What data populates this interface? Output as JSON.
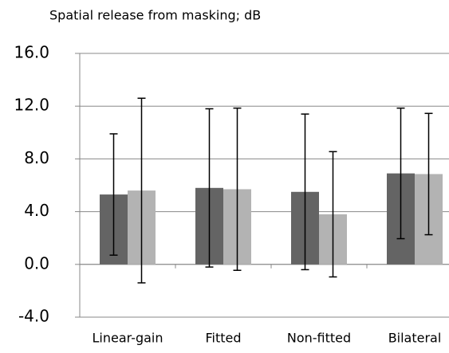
{
  "chart_data": {
    "type": "bar",
    "title": "Spatial release from masking; dB",
    "categories": [
      "Linear-gain",
      "Fitted",
      "Non-fitted",
      "Bilateral"
    ],
    "series": [
      {
        "color": "#646464",
        "values": [
          5.3,
          5.8,
          5.5,
          6.9
        ],
        "errors": [
          4.6,
          6.0,
          5.9,
          4.95
        ]
      },
      {
        "color": "#b3b3b3",
        "values": [
          5.6,
          5.7,
          3.8,
          6.85
        ],
        "errors": [
          7.0,
          6.15,
          4.75,
          4.6
        ]
      }
    ],
    "ylim": [
      -4,
      16
    ],
    "yticks": [
      {
        "value": -4,
        "label": "-4.0"
      },
      {
        "value": 0,
        "label": "0.0"
      },
      {
        "value": 4,
        "label": "4.0"
      },
      {
        "value": 8,
        "label": "8.0"
      },
      {
        "value": 12,
        "label": "12.0"
      },
      {
        "value": 16,
        "label": "16.0"
      }
    ],
    "grid": true
  }
}
